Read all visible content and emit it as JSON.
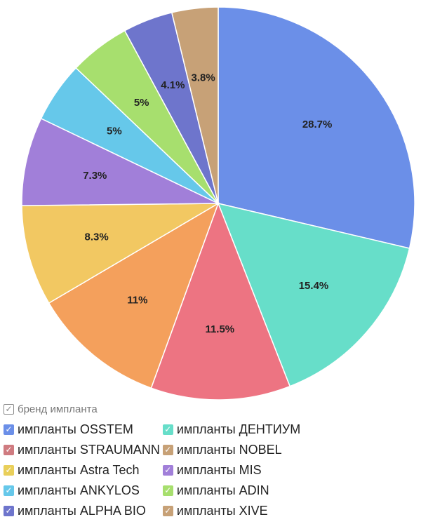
{
  "chart_data": {
    "type": "pie",
    "title": "",
    "slices": [
      {
        "label": "импланты OSSTEM",
        "value": 28.7,
        "display": "28.7%",
        "color": "#6b8fe8"
      },
      {
        "label": "импланты ДЕНТИУМ",
        "value": 15.4,
        "display": "15.4%",
        "color": "#67dec9"
      },
      {
        "label": "импланты STRAUMANN",
        "value": 11.5,
        "display": "11.5%",
        "color": "#ed7482"
      },
      {
        "label": "импланты NOBEL",
        "value": 11,
        "display": "11%",
        "color": "#f4a05c"
      },
      {
        "label": "импланты Astra Tech",
        "value": 8.3,
        "display": "8.3%",
        "color": "#f2c862"
      },
      {
        "label": "импланты MIS",
        "value": 7.3,
        "display": "7.3%",
        "color": "#a17fd9"
      },
      {
        "label": "импланты ANKYLOS",
        "value": 5,
        "display": "5%",
        "color": "#66c8ea"
      },
      {
        "label": "импланты ADIN",
        "value": 5,
        "display": "5%",
        "color": "#a7df6e"
      },
      {
        "label": "импланты ALPHA BIO",
        "value": 4.1,
        "display": "4.1%",
        "color": "#6e75cc"
      },
      {
        "label": "импланты XIVE",
        "value": 3.8,
        "display": "3.8%",
        "color": "#c7a177"
      }
    ]
  },
  "legend": {
    "title": "бренд импланта",
    "check_glyph": "✓",
    "items": [
      {
        "label": "импланты OSSTEM",
        "color": "#6b8fe8"
      },
      {
        "label": "импланты ДЕНТИУМ",
        "color": "#67dec9"
      },
      {
        "label": "импланты STRAUMANN",
        "color": "#cf7b80"
      },
      {
        "label": "импланты NOBEL",
        "color": "#c7a177"
      },
      {
        "label": "импланты Astra Tech",
        "color": "#e9cf5a"
      },
      {
        "label": "импланты MIS",
        "color": "#a17fd9"
      },
      {
        "label": "импланты ANKYLOS",
        "color": "#66c8ea"
      },
      {
        "label": "импланты ADIN",
        "color": "#a7df6e"
      },
      {
        "label": "импланты ALPHA BIO",
        "color": "#6e75cc"
      },
      {
        "label": "импланты XIVE",
        "color": "#c7a177"
      }
    ]
  }
}
